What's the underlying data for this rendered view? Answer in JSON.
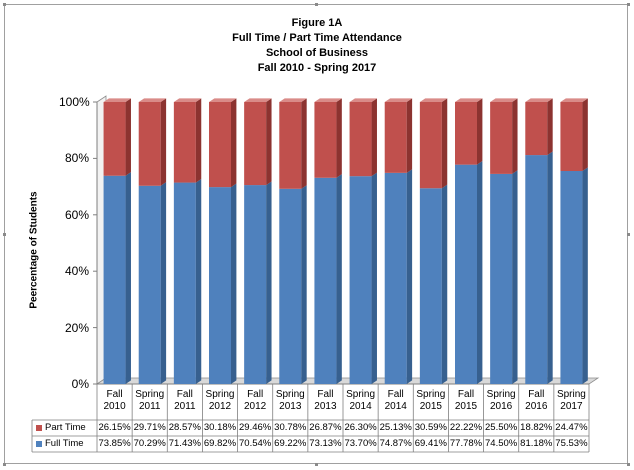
{
  "title_lines": [
    "Figure 1A",
    "Full Time / Part Time Attendance",
    "School of Business",
    "Fall 2010 - Spring 2017"
  ],
  "chart_data": {
    "type": "bar",
    "stacked": true,
    "percent_stacked": true,
    "title": "Figure 1A Full Time / Part Time Attendance School of Business Fall 2010 - Spring 2017",
    "ylabel": "Peercentage of Students",
    "xlabel": "",
    "ylim": [
      0,
      100
    ],
    "yticks": [
      "0%",
      "20%",
      "40%",
      "60%",
      "80%",
      "100%"
    ],
    "categories": [
      [
        "Fall",
        "2010"
      ],
      [
        "Spring",
        "2011"
      ],
      [
        "Fall",
        "2011"
      ],
      [
        "Spring",
        "2012"
      ],
      [
        "Fall",
        "2012"
      ],
      [
        "Spring",
        "2013"
      ],
      [
        "Fall",
        "2013"
      ],
      [
        "Spring",
        "2014"
      ],
      [
        "Fall",
        "2014"
      ],
      [
        "Spring",
        "2015"
      ],
      [
        "Fall",
        "2015"
      ],
      [
        "Spring",
        "2016"
      ],
      [
        "Fall",
        "2016"
      ],
      [
        "Spring",
        "2017"
      ]
    ],
    "series": [
      {
        "name": "Part Time",
        "color": "#c0504d",
        "side": "#8c3330",
        "values": [
          26.15,
          29.71,
          28.57,
          30.18,
          29.46,
          30.78,
          26.87,
          26.3,
          25.13,
          30.59,
          22.22,
          25.5,
          18.82,
          24.47
        ],
        "labels": [
          "26.15%",
          "29.71%",
          "28.57%",
          "30.18%",
          "29.46%",
          "30.78%",
          "26.87%",
          "26.30%",
          "25.13%",
          "30.59%",
          "22.22%",
          "25.50%",
          "18.82%",
          "24.47%"
        ]
      },
      {
        "name": "Full Time",
        "color": "#4f81bd",
        "side": "#37608f",
        "values": [
          73.85,
          70.29,
          71.43,
          69.82,
          70.54,
          69.22,
          73.13,
          73.7,
          74.87,
          69.41,
          77.78,
          74.5,
          81.18,
          75.53
        ],
        "labels": [
          "73.85%",
          "70.29%",
          "71.43%",
          "69.82%",
          "70.54%",
          "69.22%",
          "73.13%",
          "73.70%",
          "74.87%",
          "69.41%",
          "77.78%",
          "74.50%",
          "81.18%",
          "75.53%"
        ]
      }
    ],
    "data_table": true,
    "grid": false,
    "legend": "in data table"
  }
}
